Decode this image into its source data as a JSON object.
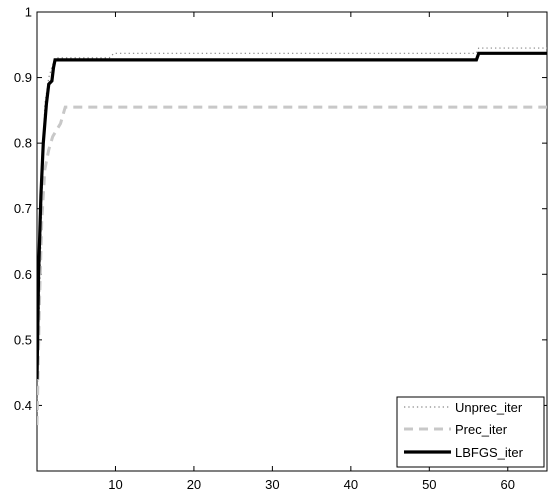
{
  "chart_data": {
    "type": "line",
    "title": "",
    "xlabel": "",
    "ylabel": "",
    "xlim": [
      0,
      65
    ],
    "ylim": [
      0.3,
      1.0
    ],
    "xticks": [
      10,
      20,
      30,
      40,
      50,
      60
    ],
    "xtick_labels": [
      "10",
      "20",
      "30",
      "40",
      "50",
      "60"
    ],
    "yticks": [
      0.4,
      0.5,
      0.6,
      0.7,
      0.8,
      0.9,
      1.0
    ],
    "ytick_labels": [
      "0.4",
      "0.5",
      "0.6",
      "0.7",
      "0.8",
      "0.9",
      "1"
    ],
    "grid": false,
    "legend_position": "bottom-right",
    "series": [
      {
        "name": "Unprec_iter",
        "style": "dotted",
        "color": "#888888",
        "x": [
          0,
          0.2,
          0.4,
          0.6,
          0.8,
          1,
          1.5,
          2,
          2.5,
          3,
          9.2,
          9.8,
          56,
          56.3,
          65
        ],
        "y": [
          0.39,
          0.5,
          0.6,
          0.7,
          0.8,
          0.86,
          0.9,
          0.92,
          0.93,
          0.93,
          0.93,
          0.937,
          0.937,
          0.945,
          0.945
        ]
      },
      {
        "name": "Prec_iter",
        "style": "dashed",
        "color": "#c8c8c8",
        "x": [
          0,
          0.3,
          0.6,
          1,
          1.5,
          2,
          3,
          3.6,
          65
        ],
        "y": [
          0.37,
          0.55,
          0.68,
          0.76,
          0.79,
          0.81,
          0.83,
          0.855,
          0.855
        ]
      },
      {
        "name": "LBFGS_iter",
        "style": "solid",
        "color": "#000000",
        "x": [
          0,
          0.2,
          0.5,
          0.8,
          1.2,
          1.5,
          1.9,
          2.1,
          2.3,
          56,
          56.3,
          65
        ],
        "y": [
          0.44,
          0.6,
          0.72,
          0.8,
          0.86,
          0.89,
          0.895,
          0.915,
          0.927,
          0.927,
          0.937,
          0.937
        ]
      }
    ]
  }
}
